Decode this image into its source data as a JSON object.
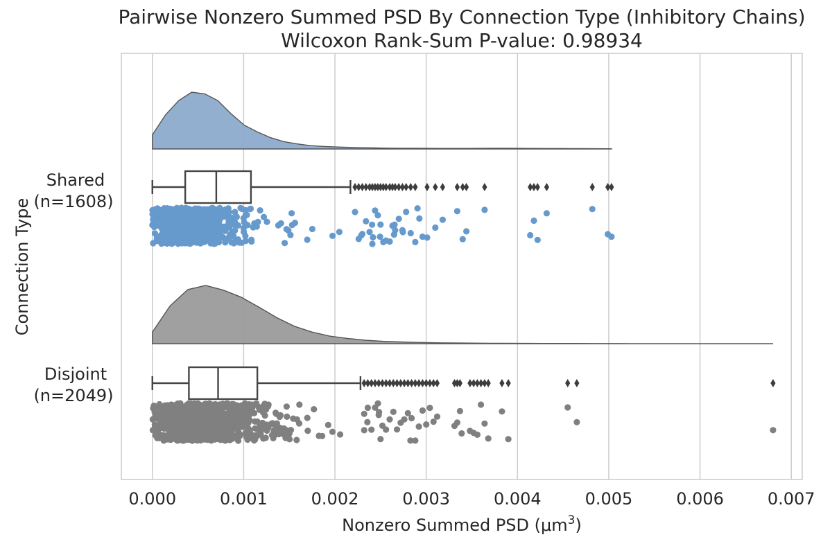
{
  "chart_data": {
    "type": "raincloud",
    "title_line1": "Pairwise Nonzero Summed PSD By Connection Type (Inhibitory Chains)",
    "title_line2": "Wilcoxon Rank-Sum P-value: 0.98934",
    "xlabel": "Nonzero Summed PSD (μm",
    "xlabel_sup": "3",
    "xlabel_close": ")",
    "ylabel": "Connection Type",
    "xlim": [
      -0.00034,
      0.00712
    ],
    "xticks": [
      0.0,
      0.001,
      0.002,
      0.003,
      0.004,
      0.005,
      0.006,
      0.007
    ],
    "xtick_labels": [
      "0.000",
      "0.001",
      "0.002",
      "0.003",
      "0.004",
      "0.005",
      "0.006",
      "0.007"
    ],
    "grid": "vertical",
    "groups": [
      {
        "label_line1": "Shared",
        "label_line2": "(n=1608)",
        "n": 1608,
        "color": "#6699cc",
        "cloud_color": "#8dabcc",
        "box": {
          "whisker_low": 0.0,
          "q1": 0.00036,
          "median": 0.0007,
          "q3": 0.00108,
          "whisker_high": 0.00217
        },
        "outliers": [
          0.00222,
          0.00226,
          0.0023,
          0.00234,
          0.00238,
          0.00241,
          0.00244,
          0.00247,
          0.0025,
          0.00253,
          0.00256,
          0.0026,
          0.00263,
          0.00266,
          0.0027,
          0.00274,
          0.00278,
          0.00283,
          0.00288,
          0.00301,
          0.0031,
          0.00318,
          0.00334,
          0.0034,
          0.00344,
          0.00364,
          0.00414,
          0.00418,
          0.00422,
          0.00432,
          0.00482,
          0.00499,
          0.00503
        ],
        "max": 0.00503,
        "density": [
          0.25,
          0.6,
          0.85,
          1.0,
          0.97,
          0.85,
          0.62,
          0.42,
          0.3,
          0.2,
          0.13,
          0.09,
          0.06,
          0.045,
          0.035,
          0.028,
          0.022,
          0.018,
          0.015,
          0.013,
          0.012,
          0.011,
          0.01,
          0.01,
          0.01,
          0.011,
          0.012,
          0.012,
          0.011,
          0.01,
          0.009,
          0.008,
          0.007,
          0.006,
          0.005,
          0.004
        ]
      },
      {
        "label_line1": "Disjoint",
        "label_line2": "(n=2049)",
        "n": 2049,
        "color": "#808080",
        "cloud_color": "#9b9b9b",
        "box": {
          "whisker_low": 0.0,
          "q1": 0.0004,
          "median": 0.00072,
          "q3": 0.00115,
          "whisker_high": 0.00228
        },
        "outliers": [
          0.00232,
          0.00236,
          0.0024,
          0.00244,
          0.00248,
          0.00252,
          0.00256,
          0.0026,
          0.00264,
          0.00268,
          0.00272,
          0.00276,
          0.0028,
          0.00284,
          0.00288,
          0.00292,
          0.00296,
          0.003,
          0.00304,
          0.00308,
          0.00312,
          0.00331,
          0.00334,
          0.00337,
          0.00348,
          0.00352,
          0.00356,
          0.0036,
          0.00364,
          0.00368,
          0.00383,
          0.0039,
          0.00455,
          0.00465,
          0.0068
        ],
        "max": 0.0068,
        "density": [
          0.2,
          0.65,
          0.93,
          1.0,
          0.92,
          0.8,
          0.63,
          0.45,
          0.3,
          0.2,
          0.13,
          0.09,
          0.06,
          0.04,
          0.03,
          0.022,
          0.016,
          0.012,
          0.009,
          0.007,
          0.006,
          0.005,
          0.004,
          0.0035,
          0.003,
          0.0025,
          0.002,
          0.0016,
          0.0013,
          0.001,
          0.0008,
          0.0006,
          0.0004,
          0.0003,
          0.0002,
          0.0001
        ]
      }
    ]
  }
}
